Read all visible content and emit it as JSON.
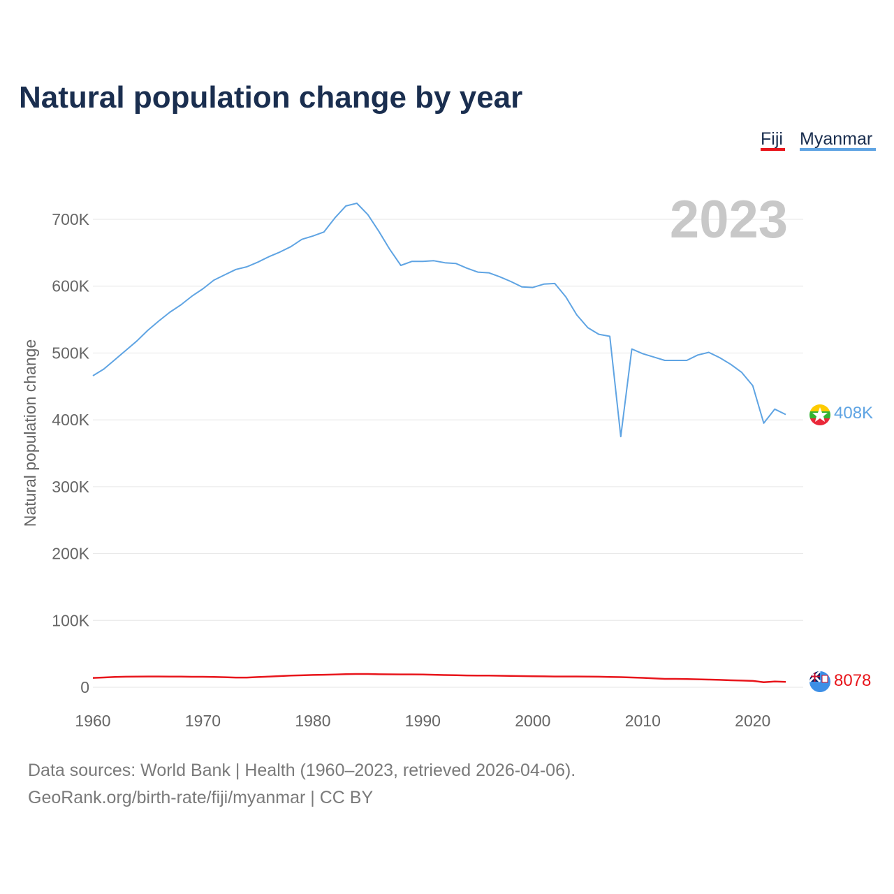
{
  "chart_data": {
    "type": "line",
    "title": "Natural population change by year",
    "ylabel": "Natural population change",
    "xlabel": "",
    "xlim": [
      1960,
      2024
    ],
    "ylim": [
      0,
      750000
    ],
    "x_ticks": [
      1960,
      1970,
      1980,
      1990,
      2000,
      2010,
      2020
    ],
    "x_tick_labels": [
      "1960",
      "1970",
      "1980",
      "1990",
      "2000",
      "2010",
      "2020"
    ],
    "y_ticks": [
      0,
      100000,
      200000,
      300000,
      400000,
      500000,
      600000,
      700000
    ],
    "y_tick_labels": [
      "0",
      "100K",
      "200K",
      "300K",
      "400K",
      "500K",
      "600K",
      "700K"
    ],
    "current_year": "2023",
    "x": [
      1960,
      1961,
      1962,
      1963,
      1964,
      1965,
      1966,
      1967,
      1968,
      1969,
      1970,
      1971,
      1972,
      1973,
      1974,
      1975,
      1976,
      1977,
      1978,
      1979,
      1980,
      1981,
      1982,
      1983,
      1984,
      1985,
      1986,
      1987,
      1988,
      1989,
      1990,
      1991,
      1992,
      1993,
      1994,
      1995,
      1996,
      1997,
      1998,
      1999,
      2000,
      2001,
      2002,
      2003,
      2004,
      2005,
      2006,
      2007,
      2008,
      2009,
      2010,
      2011,
      2012,
      2013,
      2014,
      2015,
      2016,
      2017,
      2018,
      2019,
      2020,
      2021,
      2022,
      2023
    ],
    "series": [
      {
        "name": "Fiji",
        "color": "#e8151b",
        "end_label": "8078",
        "values": [
          14000,
          14600,
          15400,
          15800,
          16000,
          16100,
          16100,
          15900,
          15900,
          15700,
          15700,
          15400,
          15000,
          14500,
          14500,
          15300,
          16000,
          16700,
          17500,
          17900,
          18400,
          18700,
          19100,
          19500,
          19900,
          19900,
          19400,
          19300,
          19200,
          19200,
          19000,
          18700,
          18300,
          18000,
          17700,
          17600,
          17400,
          17200,
          16900,
          16700,
          16400,
          16300,
          16100,
          16100,
          16100,
          16000,
          15800,
          15500,
          15200,
          14600,
          14100,
          13400,
          12500,
          12500,
          12300,
          11900,
          11500,
          11100,
          10500,
          10000,
          9500,
          7600,
          8600,
          8078
        ]
      },
      {
        "name": "Myanmar",
        "color": "#5fa4e3",
        "end_label": "408K",
        "values": [
          466000,
          476000,
          490000,
          504000,
          518000,
          534000,
          548000,
          561000,
          572000,
          585000,
          596000,
          609000,
          617000,
          625000,
          629000,
          636000,
          644000,
          651000,
          659000,
          670000,
          675000,
          681000,
          702000,
          720000,
          724000,
          707000,
          682000,
          655000,
          631000,
          637000,
          637000,
          638000,
          635000,
          634000,
          627000,
          621000,
          620000,
          614000,
          607000,
          599000,
          598000,
          603000,
          604000,
          584000,
          557000,
          538000,
          528000,
          525000,
          375000,
          506000,
          499000,
          494000,
          489000,
          489000,
          489000,
          497000,
          501000,
          493000,
          483000,
          471000,
          451000,
          395000,
          416000,
          408000
        ]
      }
    ]
  },
  "legend": {
    "items": [
      {
        "label": "Fiji",
        "color": "#e8151b"
      },
      {
        "label": "Myanmar",
        "color": "#5fa4e3"
      }
    ]
  },
  "footer": {
    "sources": "Data sources: World Bank | Health (1960–2023, retrieved 2026-04-06).",
    "credit": "GeoRank.org/birth-rate/fiji/myanmar | CC BY"
  },
  "icons": {
    "fiji_flag": "fiji-flag-icon",
    "myanmar_flag": "myanmar-flag-icon"
  }
}
